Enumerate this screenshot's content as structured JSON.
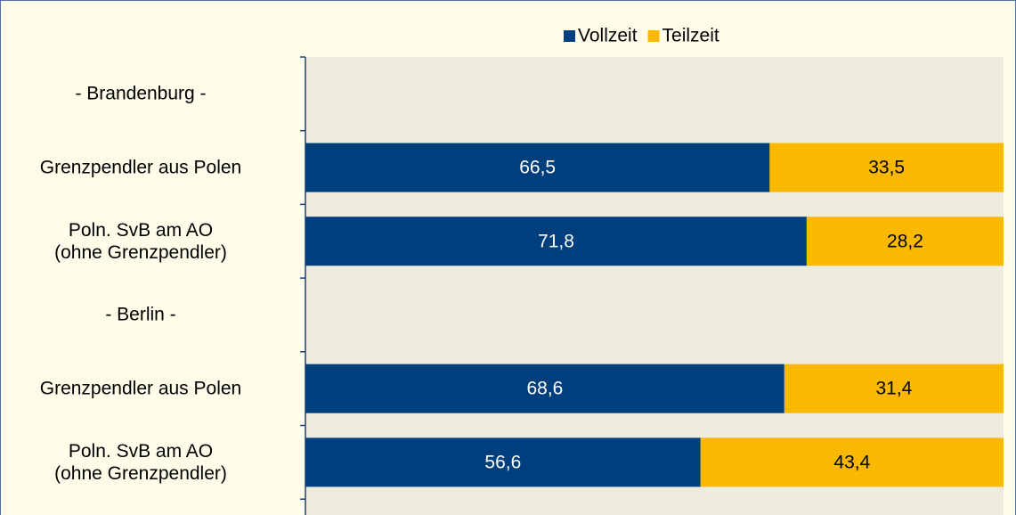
{
  "chart_data": {
    "type": "bar",
    "orientation": "horizontal",
    "stacked": true,
    "categories": [
      "- Brandenburg -",
      "Grenzpendler aus Polen",
      "Poln. SvB am AO\n(ohne Grenzpendler)",
      "- Berlin -",
      "Grenzpendler aus Polen",
      "Poln. SvB am AO\n(ohne Grenzpendler)"
    ],
    "series": [
      {
        "name": "Vollzeit",
        "color": "#003f7d",
        "values": [
          null,
          66.5,
          71.8,
          null,
          68.6,
          56.6
        ],
        "value_labels": [
          null,
          "66,5",
          "71,8",
          null,
          "68,6",
          "56,6"
        ]
      },
      {
        "name": "Teilzeit",
        "color": "#fbb800",
        "values": [
          null,
          33.5,
          28.2,
          null,
          31.4,
          43.4
        ],
        "value_labels": [
          null,
          "33,5",
          "28,2",
          null,
          "31,4",
          "43,4"
        ]
      }
    ],
    "xlim": [
      0,
      100
    ],
    "legend": "top"
  }
}
